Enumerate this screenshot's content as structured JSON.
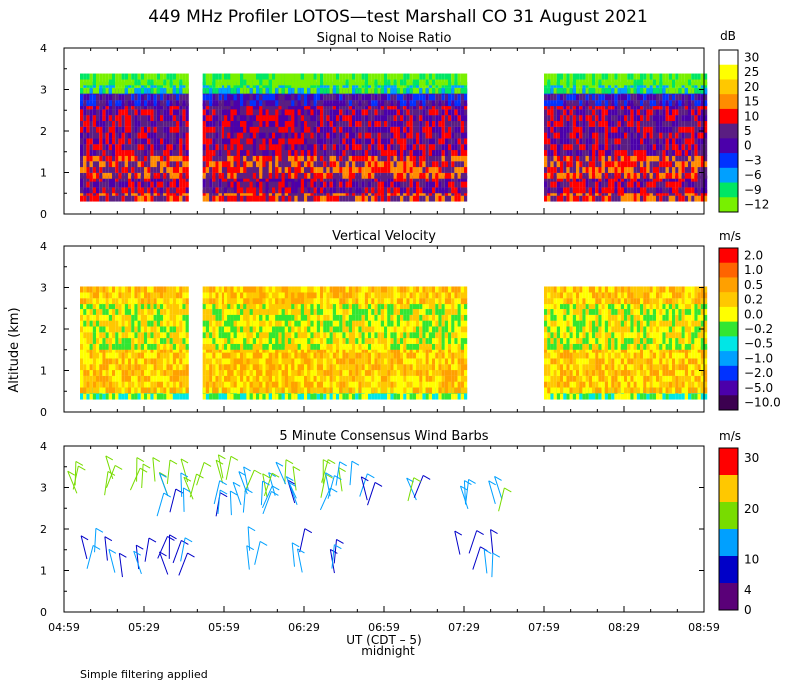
{
  "figure": {
    "title": "449 MHz Profiler LOTOS—test Marshall CO 31 August 2021",
    "footer": "Simple filtering applied",
    "xlabel_main": "UT  (CDT – 5)",
    "xlabel_note": "midnight",
    "ylabel": "Altitude (km)"
  },
  "chart_data": [
    {
      "type": "heatmap",
      "title": "Signal to Noise Ratio",
      "unit": "dB",
      "x_range_minutes_since_0459": [
        0,
        240
      ],
      "ylim": [
        0,
        4
      ],
      "yticks": [
        "0",
        "1",
        "2",
        "3",
        "4"
      ],
      "colorbar_labels": [
        "30",
        "25",
        "20",
        "15",
        "10",
        "5",
        "0",
        "−3",
        "−6",
        "−9",
        "−12"
      ],
      "colors": [
        "#ffffff",
        "#ffff00",
        "#ffc800",
        "#ff8c00",
        "#ff0000",
        "#5a1e82",
        "#4b00aa",
        "#0032ff",
        "#00a0ff",
        "#00e664",
        "#78f000"
      ],
      "data_segments": [
        [
          6,
          46
        ],
        [
          52,
          94
        ],
        [
          60,
          150
        ],
        [
          180,
          240
        ]
      ],
      "level_bands": [
        {
          "from": 0.3,
          "to": 0.5,
          "level": 4
        },
        {
          "from": 0.5,
          "to": 0.85,
          "level": 5
        },
        {
          "from": 0.85,
          "to": 1.4,
          "level": 4
        },
        {
          "from": 1.4,
          "to": 2.6,
          "level": 5
        },
        {
          "from": 2.6,
          "to": 2.9,
          "level": 6
        },
        {
          "from": 2.9,
          "to": 3.1,
          "level": 9
        },
        {
          "from": 3.1,
          "to": 3.25,
          "level": 10
        }
      ]
    },
    {
      "type": "heatmap",
      "title": "Vertical Velocity",
      "unit": "m/s",
      "x_range_minutes_since_0459": [
        0,
        240
      ],
      "ylim": [
        0,
        4
      ],
      "yticks": [
        "0",
        "1",
        "2",
        "3",
        "4"
      ],
      "colorbar_labels": [
        "2.0",
        "1.0",
        "0.5",
        "0.2",
        "0.0",
        "−0.2",
        "−0.5",
        "−1.0",
        "−2.0",
        "−5.0",
        "−10.0"
      ],
      "colors": [
        "#ff0000",
        "#ff6400",
        "#ffa000",
        "#ffc800",
        "#ffff00",
        "#32e632",
        "#00e6e6",
        "#00a0ff",
        "#0032ff",
        "#4b00aa",
        "#3c0050"
      ],
      "data_segments": [
        [
          6,
          46
        ],
        [
          52,
          94
        ],
        [
          60,
          150
        ],
        [
          180,
          240
        ]
      ],
      "level_bands": [
        {
          "from": 0.3,
          "to": 0.45,
          "level": 5
        },
        {
          "from": 0.45,
          "to": 1.5,
          "level": 3
        },
        {
          "from": 1.5,
          "to": 2.6,
          "level": 4
        },
        {
          "from": 2.6,
          "to": 3.0,
          "level": 3
        }
      ]
    },
    {
      "type": "scatter",
      "title": "5 Minute Consensus Wind Barbs",
      "unit": "m/s",
      "x_range_minutes_since_0459": [
        0,
        240
      ],
      "ylim": [
        0,
        4
      ],
      "yticks": [
        "0",
        "1",
        "2",
        "3",
        "4"
      ],
      "xticks": [
        "04:59",
        "05:29",
        "05:59",
        "06:29",
        "06:59",
        "07:29",
        "07:59",
        "08:29",
        "08:59"
      ],
      "colorbar_labels": [
        "30",
        "20",
        "10",
        "4",
        "0"
      ],
      "colorbar_values": [
        30,
        20,
        10,
        4,
        0
      ],
      "colors": [
        "#ff0000",
        "#ffc800",
        "#78dc00",
        "#00a0ff",
        "#0000c8",
        "#5a0078"
      ],
      "barb_groups": [
        {
          "t": [
            2,
            14,
            24,
            34,
            46,
            56,
            64,
            74,
            82,
            92,
            102
          ],
          "alt": [
            2.75,
            3.25
          ],
          "speed": 12
        },
        {
          "t": [
            34,
            44,
            56,
            62,
            72,
            86,
            96,
            108,
            128,
            146,
            160
          ],
          "alt": [
            2.3,
            2.8
          ],
          "speed": 8
        },
        {
          "t": [
            6,
            16,
            26,
            34,
            40,
            66,
            86,
            100,
            148,
            158
          ],
          "alt": [
            0.8,
            1.5
          ],
          "speed": 5
        }
      ]
    }
  ]
}
